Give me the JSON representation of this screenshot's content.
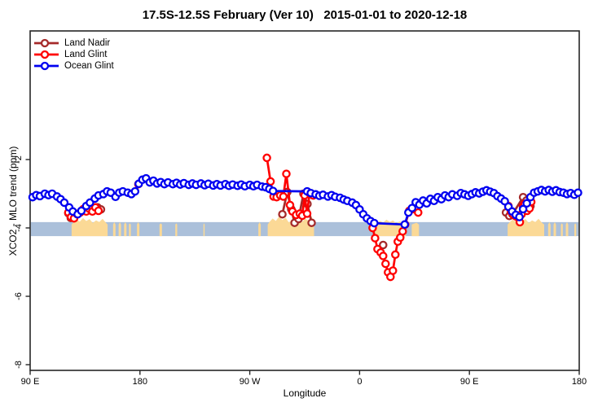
{
  "header": {
    "title": "17.5S-12.5S February (Ver 10)   2015-01-01 to 2020-12-18"
  },
  "chart_data": {
    "type": "line",
    "title": "17.5S-12.5S February (Ver 10)   2015-01-01 to 2020-12-18",
    "xlabel": "Longitude",
    "ylabel": "XCO2 - MLO trend (ppm)",
    "xlim": [
      90,
      540
    ],
    "ylim": [
      -8.2,
      1.8
    ],
    "grid": false,
    "legend_position": "top-left-inside",
    "x_ticks": [
      {
        "value": 90,
        "label": "90 E"
      },
      {
        "value": 180,
        "label": "180"
      },
      {
        "value": 270,
        "label": "90 W"
      },
      {
        "value": 360,
        "label": "0"
      },
      {
        "value": 450,
        "label": "90 E"
      },
      {
        "value": 540,
        "label": "180"
      }
    ],
    "y_ticks": [
      {
        "value": -2,
        "label": "-2"
      },
      {
        "value": -4,
        "label": "-4"
      },
      {
        "value": -6,
        "label": "-6"
      },
      {
        "value": -8,
        "label": "-8"
      }
    ],
    "map_strip": {
      "description": "ocean/land strip for latitude band drawn across plot near -4 ppm",
      "ocean_color": "#abc0da",
      "land_color": "#fbd996",
      "v_top": -3.83,
      "v_bottom": -4.24,
      "land_patches": [
        {
          "from": 124,
          "to": 153.5,
          "jag": 8
        },
        {
          "from": 158,
          "to": 160,
          "jag": 2
        },
        {
          "from": 162.5,
          "to": 164.5,
          "jag": 2
        },
        {
          "from": 167,
          "to": 169,
          "jag": 2
        },
        {
          "from": 171,
          "to": 172.5,
          "jag": 1
        },
        {
          "from": 177.5,
          "to": 179.5,
          "jag": 2
        },
        {
          "from": 196,
          "to": 198,
          "jag": 1
        },
        {
          "from": 209,
          "to": 210.5,
          "jag": 1
        },
        {
          "from": 232,
          "to": 233,
          "jag": 1
        },
        {
          "from": 277,
          "to": 279,
          "jag": 2
        },
        {
          "from": 284.7,
          "to": 322.7,
          "jag": 10
        },
        {
          "from": 372.7,
          "to": 398,
          "jag": 6
        },
        {
          "from": 402.7,
          "to": 408.7,
          "jag": 3
        },
        {
          "from": 481.3,
          "to": 511.3,
          "jag": 8
        },
        {
          "from": 514.5,
          "to": 516.5,
          "jag": 2
        },
        {
          "from": 519,
          "to": 521,
          "jag": 2
        },
        {
          "from": 525,
          "to": 526.5,
          "jag": 1
        },
        {
          "from": 529,
          "to": 531,
          "jag": 2
        },
        {
          "from": 536,
          "to": 537.5,
          "jag": 1
        }
      ]
    },
    "series": [
      {
        "name": "Land Nadir",
        "color": "#A52A2A",
        "clusters": [
          [
            [
              121.3,
              -3.57
            ],
            [
              123.3,
              -3.71
            ],
            [
              145.3,
              -3.4
            ],
            [
              148,
              -3.46
            ]
          ],
          [
            [
              296.7,
              -3.6
            ],
            [
              300.7,
              -2.95
            ],
            [
              304,
              -3.45
            ],
            [
              306.7,
              -3.85
            ],
            [
              310,
              -3.74
            ],
            [
              314,
              -3.0
            ],
            [
              317.3,
              -3.3
            ],
            [
              320.7,
              -3.85
            ]
          ],
          [
            [
              379.3,
              -4.5
            ]
          ],
          [
            [
              480,
              -3.55
            ],
            [
              482.7,
              -3.65
            ],
            [
              485.3,
              -3.6
            ],
            [
              494,
              -3.1
            ],
            [
              496.7,
              -3.2
            ],
            [
              500,
              -3.36
            ]
          ]
        ]
      },
      {
        "name": "Land Glint",
        "color": "#FF0000",
        "clusters": [
          [
            [
              121.3,
              -3.55
            ],
            [
              123.5,
              -3.68
            ],
            [
              126,
              -3.72
            ],
            [
              128.5,
              -3.6
            ],
            [
              131,
              -3.55
            ],
            [
              133.5,
              -3.45
            ],
            [
              136,
              -3.52
            ],
            [
              138.5,
              -3.44
            ],
            [
              141,
              -3.52
            ],
            [
              143.5,
              -3.4
            ],
            [
              146,
              -3.5
            ]
          ],
          [
            [
              178.7,
              -2.72
            ]
          ],
          [
            [
              284,
              -1.95
            ],
            [
              287,
              -2.64
            ],
            [
              289.5,
              -3.08
            ],
            [
              292,
              -3.1
            ],
            [
              295,
              -3.05
            ],
            [
              297.5,
              -3.08
            ],
            [
              300,
              -2.42
            ],
            [
              303,
              -3.33
            ],
            [
              305,
              -3.52
            ],
            [
              308,
              -3.62
            ],
            [
              311,
              -3.58
            ],
            [
              313,
              -3.64
            ],
            [
              315,
              -3.05
            ],
            [
              317,
              -3.58
            ],
            [
              319,
              -2.98
            ],
            [
              322,
              -3.05
            ]
          ],
          [
            [
              370.7,
              -4.0
            ],
            [
              372.7,
              -4.3
            ],
            [
              374.7,
              -4.62
            ],
            [
              377.3,
              -4.72
            ],
            [
              379.3,
              -4.82
            ],
            [
              381.3,
              -5.05
            ],
            [
              383.3,
              -5.3
            ],
            [
              385.3,
              -5.43
            ],
            [
              387.3,
              -5.25
            ],
            [
              389.3,
              -4.78
            ],
            [
              391.3,
              -4.4
            ],
            [
              393.3,
              -4.28
            ],
            [
              395.3,
              -4.1
            ],
            [
              397.3,
              -3.9
            ],
            [
              400.7,
              -3.5
            ],
            [
              403.3,
              -3.45
            ],
            [
              406,
              -3.4
            ],
            [
              408,
              -3.55
            ]
          ],
          [
            [
              482,
              -3.36
            ],
            [
              484,
              -3.52
            ],
            [
              486,
              -3.62
            ],
            [
              488,
              -3.66
            ],
            [
              490,
              -3.7
            ],
            [
              491.3,
              -3.83
            ],
            [
              492.7,
              -3.6
            ],
            [
              494,
              -3.36
            ],
            [
              495.3,
              -3.3
            ],
            [
              497.3,
              -3.5
            ],
            [
              499.3,
              -3.43
            ],
            [
              500.7,
              -3.24
            ]
          ]
        ]
      },
      {
        "name": "Ocean Glint",
        "color": "#0000F0",
        "clusters": [
          [
            [
              92,
              -3.1
            ],
            [
              95,
              -3.04
            ],
            [
              98,
              -3.07
            ],
            [
              102,
              -3.0
            ],
            [
              105,
              -3.04
            ],
            [
              108,
              -3.0
            ],
            [
              112,
              -3.08
            ],
            [
              115,
              -3.16
            ],
            [
              118,
              -3.26
            ],
            [
              122,
              -3.4
            ],
            [
              125,
              -3.52
            ],
            [
              129,
              -3.6
            ],
            [
              132,
              -3.5
            ],
            [
              136,
              -3.36
            ],
            [
              139,
              -3.26
            ],
            [
              143,
              -3.14
            ],
            [
              146,
              -3.05
            ],
            [
              150,
              -3.01
            ],
            [
              153,
              -2.93
            ],
            [
              156,
              -2.97
            ],
            [
              160,
              -3.09
            ],
            [
              163,
              -2.97
            ],
            [
              166,
              -2.93
            ],
            [
              170,
              -2.97
            ],
            [
              173,
              -3.01
            ],
            [
              176,
              -2.93
            ],
            [
              179,
              -2.71
            ],
            [
              182,
              -2.59
            ],
            [
              185,
              -2.55
            ],
            [
              188,
              -2.67
            ],
            [
              191,
              -2.62
            ],
            [
              194,
              -2.7
            ],
            [
              197,
              -2.66
            ],
            [
              200,
              -2.72
            ],
            [
              203,
              -2.67
            ],
            [
              207,
              -2.72
            ],
            [
              210,
              -2.68
            ],
            [
              213,
              -2.73
            ],
            [
              216,
              -2.69
            ],
            [
              220,
              -2.74
            ],
            [
              223,
              -2.7
            ],
            [
              226,
              -2.74
            ],
            [
              230,
              -2.7
            ],
            [
              233,
              -2.75
            ],
            [
              236,
              -2.71
            ],
            [
              240,
              -2.76
            ],
            [
              243,
              -2.72
            ],
            [
              246,
              -2.76
            ],
            [
              250,
              -2.72
            ],
            [
              253,
              -2.77
            ],
            [
              256,
              -2.73
            ],
            [
              260,
              -2.77
            ],
            [
              263,
              -2.73
            ],
            [
              266,
              -2.78
            ],
            [
              270,
              -2.74
            ],
            [
              273,
              -2.78
            ],
            [
              276,
              -2.74
            ],
            [
              280,
              -2.79
            ],
            [
              283,
              -2.81
            ],
            [
              286,
              -2.86
            ],
            [
              289,
              -2.92
            ],
            [
              317,
              -2.93
            ],
            [
              320,
              -2.98
            ],
            [
              324,
              -3.02
            ],
            [
              327,
              -3.06
            ],
            [
              330,
              -3.03
            ],
            [
              334,
              -3.08
            ],
            [
              337,
              -3.04
            ],
            [
              340,
              -3.09
            ],
            [
              344,
              -3.12
            ],
            [
              347,
              -3.17
            ],
            [
              350,
              -3.21
            ],
            [
              354,
              -3.26
            ],
            [
              357,
              -3.33
            ],
            [
              360,
              -3.46
            ],
            [
              363,
              -3.6
            ],
            [
              366,
              -3.72
            ],
            [
              369,
              -3.8
            ],
            [
              372,
              -3.86
            ],
            [
              397,
              -3.9
            ],
            [
              400,
              -3.55
            ],
            [
              403,
              -3.42
            ],
            [
              406,
              -3.25
            ],
            [
              409,
              -3.32
            ],
            [
              412,
              -3.2
            ],
            [
              415,
              -3.28
            ],
            [
              418,
              -3.15
            ],
            [
              421,
              -3.21
            ],
            [
              424,
              -3.1
            ],
            [
              427,
              -3.16
            ],
            [
              430,
              -3.05
            ],
            [
              433,
              -3.1
            ],
            [
              436,
              -3.02
            ],
            [
              440,
              -3.06
            ],
            [
              443,
              -2.98
            ],
            [
              446,
              -3.02
            ],
            [
              449,
              -3.06
            ],
            [
              452,
              -3.01
            ],
            [
              455,
              -2.96
            ],
            [
              458,
              -2.99
            ],
            [
              461,
              -2.94
            ],
            [
              464,
              -2.9
            ],
            [
              467,
              -2.94
            ],
            [
              470,
              -2.98
            ],
            [
              473,
              -3.07
            ],
            [
              476,
              -3.14
            ],
            [
              479,
              -3.22
            ],
            [
              482,
              -3.38
            ],
            [
              485,
              -3.52
            ],
            [
              488,
              -3.62
            ],
            [
              491,
              -3.68
            ],
            [
              494,
              -3.45
            ],
            [
              497,
              -3.28
            ],
            [
              500,
              -3.1
            ],
            [
              503,
              -2.97
            ],
            [
              506,
              -2.93
            ],
            [
              509,
              -2.89
            ],
            [
              512,
              -2.93
            ],
            [
              515,
              -2.89
            ],
            [
              518,
              -2.94
            ],
            [
              521,
              -2.9
            ],
            [
              524,
              -2.95
            ],
            [
              527,
              -2.97
            ],
            [
              530,
              -3.01
            ],
            [
              533,
              -2.98
            ],
            [
              536,
              -3.03
            ],
            [
              539,
              -2.97
            ]
          ]
        ]
      }
    ]
  }
}
